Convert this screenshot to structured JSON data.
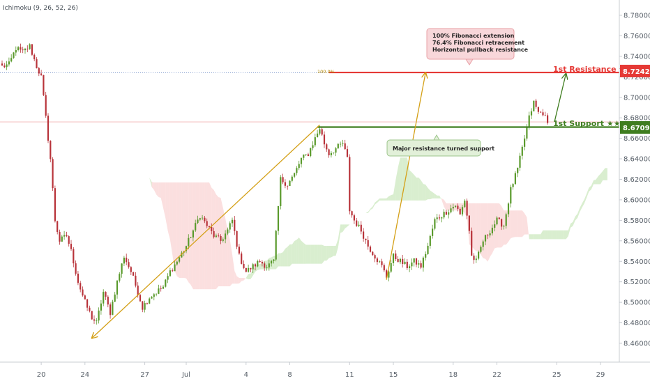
{
  "indicator_label": "Ichimoku (9, 26, 52, 26)",
  "annotations": {
    "resistance_note": [
      "100% Fibonacci extension",
      "76.4% Fibonacci retracement",
      "Horizontal pullback resistance"
    ],
    "support_note": "Major resistance turned support",
    "fib_level_label": "100.0%",
    "resistance_label": "1st Resistance ★★",
    "support_label": "1st Support ★★",
    "resistance_price": "8.72425",
    "support_price": "8.67095"
  },
  "colors": {
    "up_candle": "#5a9a2c",
    "down_candle": "#b8333a",
    "resistance": "#e53935",
    "support": "#3f7d1f",
    "fib_arrow": "#d4a017",
    "kumo_bull": "#b9e0a8",
    "kumo_bear": "#f7c4c4",
    "resistance_note_bg": "#f8d7da",
    "support_note_bg": "#e2f0d9"
  },
  "chart_data": {
    "type": "candlestick",
    "title": "",
    "ylim": [
      8.44,
      8.79
    ],
    "y_ticks": [
      "8.78000",
      "8.76000",
      "8.74000",
      "8.72000",
      "8.70000",
      "8.68000",
      "8.66000",
      "8.64000",
      "8.62000",
      "8.60000",
      "8.58000",
      "8.56000",
      "8.54000",
      "8.52000",
      "8.50000",
      "8.48000",
      "8.46000"
    ],
    "x_ticks": [
      {
        "label": "20",
        "idx": 17
      },
      {
        "label": "24",
        "idx": 36
      },
      {
        "label": "27",
        "idx": 62
      },
      {
        "label": "Jul",
        "idx": 80
      },
      {
        "label": "4",
        "idx": 106
      },
      {
        "label": "8",
        "idx": 125
      },
      {
        "label": "11",
        "idx": 151
      },
      {
        "label": "15",
        "idx": 170
      },
      {
        "label": "18",
        "idx": 196
      },
      {
        "label": "22",
        "idx": 215
      },
      {
        "label": "25",
        "idx": 241
      },
      {
        "label": "29",
        "idx": 260
      }
    ],
    "key_points": [
      {
        "i": 0,
        "p": 8.73
      },
      {
        "i": 3,
        "p": 8.732
      },
      {
        "i": 6,
        "p": 8.748
      },
      {
        "i": 9,
        "p": 8.744
      },
      {
        "i": 12,
        "p": 8.75
      },
      {
        "i": 15,
        "p": 8.73
      },
      {
        "i": 17,
        "p": 8.72
      },
      {
        "i": 19,
        "p": 8.68
      },
      {
        "i": 21,
        "p": 8.64
      },
      {
        "i": 23,
        "p": 8.58
      },
      {
        "i": 25,
        "p": 8.56
      },
      {
        "i": 28,
        "p": 8.565
      },
      {
        "i": 30,
        "p": 8.55
      },
      {
        "i": 33,
        "p": 8.52
      },
      {
        "i": 36,
        "p": 8.5
      },
      {
        "i": 39,
        "p": 8.485
      },
      {
        "i": 41,
        "p": 8.48
      },
      {
        "i": 44,
        "p": 8.51
      },
      {
        "i": 47,
        "p": 8.49
      },
      {
        "i": 50,
        "p": 8.52
      },
      {
        "i": 53,
        "p": 8.545
      },
      {
        "i": 56,
        "p": 8.53
      },
      {
        "i": 59,
        "p": 8.51
      },
      {
        "i": 61,
        "p": 8.495
      },
      {
        "i": 64,
        "p": 8.505
      },
      {
        "i": 67,
        "p": 8.51
      },
      {
        "i": 70,
        "p": 8.515
      },
      {
        "i": 73,
        "p": 8.53
      },
      {
        "i": 76,
        "p": 8.54
      },
      {
        "i": 80,
        "p": 8.555
      },
      {
        "i": 83,
        "p": 8.57
      },
      {
        "i": 86,
        "p": 8.585
      },
      {
        "i": 89,
        "p": 8.575
      },
      {
        "i": 92,
        "p": 8.565
      },
      {
        "i": 95,
        "p": 8.56
      },
      {
        "i": 98,
        "p": 8.57
      },
      {
        "i": 100,
        "p": 8.58
      },
      {
        "i": 103,
        "p": 8.545
      },
      {
        "i": 106,
        "p": 8.53
      },
      {
        "i": 109,
        "p": 8.535
      },
      {
        "i": 112,
        "p": 8.54
      },
      {
        "i": 115,
        "p": 8.535
      },
      {
        "i": 118,
        "p": 8.54
      },
      {
        "i": 121,
        "p": 8.62
      },
      {
        "i": 124,
        "p": 8.615
      },
      {
        "i": 127,
        "p": 8.625
      },
      {
        "i": 130,
        "p": 8.64
      },
      {
        "i": 133,
        "p": 8.645
      },
      {
        "i": 136,
        "p": 8.66
      },
      {
        "i": 138,
        "p": 8.67
      },
      {
        "i": 140,
        "p": 8.655
      },
      {
        "i": 142,
        "p": 8.645
      },
      {
        "i": 145,
        "p": 8.65
      },
      {
        "i": 148,
        "p": 8.655
      },
      {
        "i": 150,
        "p": 8.64
      },
      {
        "i": 151,
        "p": 8.59
      },
      {
        "i": 153,
        "p": 8.58
      },
      {
        "i": 156,
        "p": 8.57
      },
      {
        "i": 159,
        "p": 8.555
      },
      {
        "i": 162,
        "p": 8.545
      },
      {
        "i": 165,
        "p": 8.535
      },
      {
        "i": 167,
        "p": 8.525
      },
      {
        "i": 170,
        "p": 8.545
      },
      {
        "i": 173,
        "p": 8.54
      },
      {
        "i": 176,
        "p": 8.535
      },
      {
        "i": 179,
        "p": 8.54
      },
      {
        "i": 182,
        "p": 8.535
      },
      {
        "i": 185,
        "p": 8.555
      },
      {
        "i": 188,
        "p": 8.58
      },
      {
        "i": 191,
        "p": 8.585
      },
      {
        "i": 194,
        "p": 8.59
      },
      {
        "i": 197,
        "p": 8.595
      },
      {
        "i": 199,
        "p": 8.585
      },
      {
        "i": 201,
        "p": 8.6
      },
      {
        "i": 203,
        "p": 8.57
      },
      {
        "i": 204,
        "p": 8.545
      },
      {
        "i": 206,
        "p": 8.54
      },
      {
        "i": 209,
        "p": 8.56
      },
      {
        "i": 212,
        "p": 8.57
      },
      {
        "i": 215,
        "p": 8.58
      },
      {
        "i": 218,
        "p": 8.575
      },
      {
        "i": 221,
        "p": 8.61
      },
      {
        "i": 224,
        "p": 8.63
      },
      {
        "i": 227,
        "p": 8.66
      },
      {
        "i": 229,
        "p": 8.68
      },
      {
        "i": 231,
        "p": 8.695
      },
      {
        "i": 233,
        "p": 8.685
      },
      {
        "i": 235,
        "p": 8.685
      },
      {
        "i": 237,
        "p": 8.675
      }
    ],
    "levels": [
      {
        "name": "1st Resistance",
        "value": 8.72425,
        "color": "#e53935"
      },
      {
        "name": "1st Support",
        "value": 8.67095,
        "color": "#3f7d1f"
      }
    ],
    "fib_lines": [
      {
        "from": {
          "i": 39,
          "p": 8.465
        },
        "to": {
          "i": 138,
          "p": 8.673
        }
      },
      {
        "from": {
          "i": 167,
          "p": 8.522
        },
        "to": {
          "i": 184,
          "p": 8.724
        }
      }
    ],
    "reference_lines": [
      {
        "value": 8.724,
        "style": "dotted",
        "color": "#5b7fbf"
      },
      {
        "value": 8.676,
        "style": "solid",
        "color": "#f0a0a0"
      }
    ],
    "projection_arrow": {
      "from": {
        "i": 240,
        "p": 8.676
      },
      "to": {
        "i": 245,
        "p": 8.723
      }
    }
  }
}
